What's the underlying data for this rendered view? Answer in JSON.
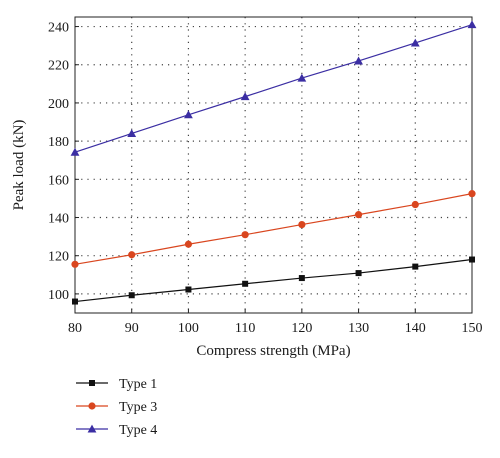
{
  "chart_data": {
    "type": "line",
    "xlabel": "Compress strength (MPa)",
    "ylabel": "Peak load (kN)",
    "xlim": [
      80,
      150
    ],
    "ylim": [
      90,
      245
    ],
    "x_ticks": [
      80,
      90,
      100,
      110,
      120,
      130,
      140,
      150
    ],
    "y_ticks": [
      100,
      120,
      140,
      160,
      180,
      200,
      220,
      240
    ],
    "grid": "dotted",
    "legend_position": "bottom-left",
    "x": [
      80,
      90,
      100,
      110,
      120,
      130,
      140,
      150
    ],
    "series": [
      {
        "name": "Type 1",
        "values": [
          96,
          99.3,
          102.3,
          105.3,
          108.3,
          110.9,
          114.3,
          118
        ],
        "color": "#111111",
        "marker": "square"
      },
      {
        "name": "Type 3",
        "values": [
          115.5,
          120.5,
          126,
          131,
          136.3,
          141.5,
          146.8,
          152.5
        ],
        "color": "#d9461f",
        "marker": "circle"
      },
      {
        "name": "Type 4",
        "values": [
          174.2,
          184,
          193.8,
          203.3,
          213,
          222,
          231.4,
          241
        ],
        "color": "#3b2ea3",
        "marker": "triangle"
      }
    ]
  }
}
